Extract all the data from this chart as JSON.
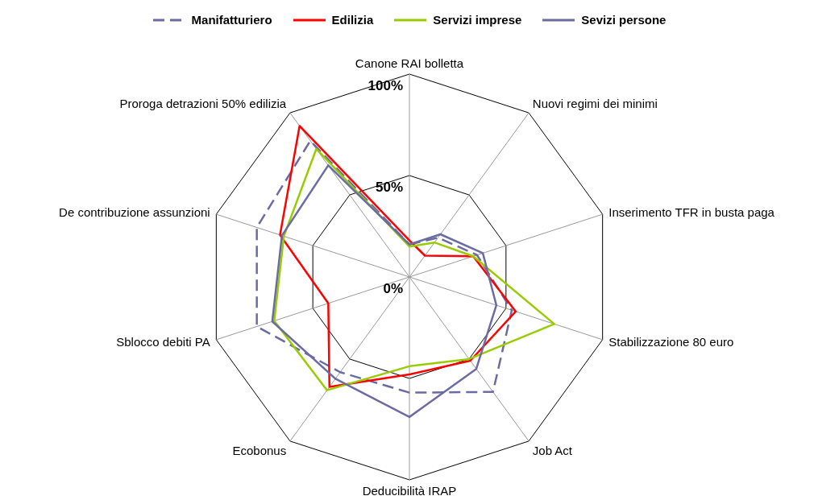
{
  "chart_data": {
    "type": "radar",
    "categories": [
      "Canone RAI bolletta",
      "Nuovi regimi dei minimi",
      "Inserimento TFR in busta paga",
      "Stabilizzazione 80 euro",
      "Job Act",
      "Deducibilità IRAP",
      "Ecobonus",
      "Sblocco debiti PA",
      "De contribuzione assunzioni",
      "Proroga detrazioni 50% edilizia"
    ],
    "series": [
      {
        "name": "Manifatturiero",
        "color": "#6b6ba3",
        "line_style": "dashed",
        "values": [
          16,
          24,
          35,
          53,
          70,
          57,
          58,
          79,
          79,
          83
        ]
      },
      {
        "name": "Edilizia",
        "color": "#ff0000",
        "line_style": "solid",
        "values": [
          18,
          13,
          33,
          55,
          51,
          48,
          67,
          42,
          67,
          92
        ]
      },
      {
        "name": "Servizi imprese",
        "color": "#99cc00",
        "line_style": "solid",
        "values": [
          15,
          21,
          33,
          75,
          50,
          44,
          69,
          70,
          65,
          78
        ]
      },
      {
        "name": "Sevizi persone",
        "color": "#6b6ba3",
        "line_style": "solid",
        "values": [
          16,
          26,
          38,
          45,
          56,
          69,
          62,
          71,
          66,
          68
        ]
      }
    ],
    "ylim": [
      0,
      100
    ],
    "yticks": [
      {
        "value": 0,
        "label": "0%"
      },
      {
        "value": 50,
        "label": "50%"
      },
      {
        "value": 100,
        "label": "100%"
      }
    ],
    "grid": true,
    "legend": "top",
    "marker": "none"
  }
}
